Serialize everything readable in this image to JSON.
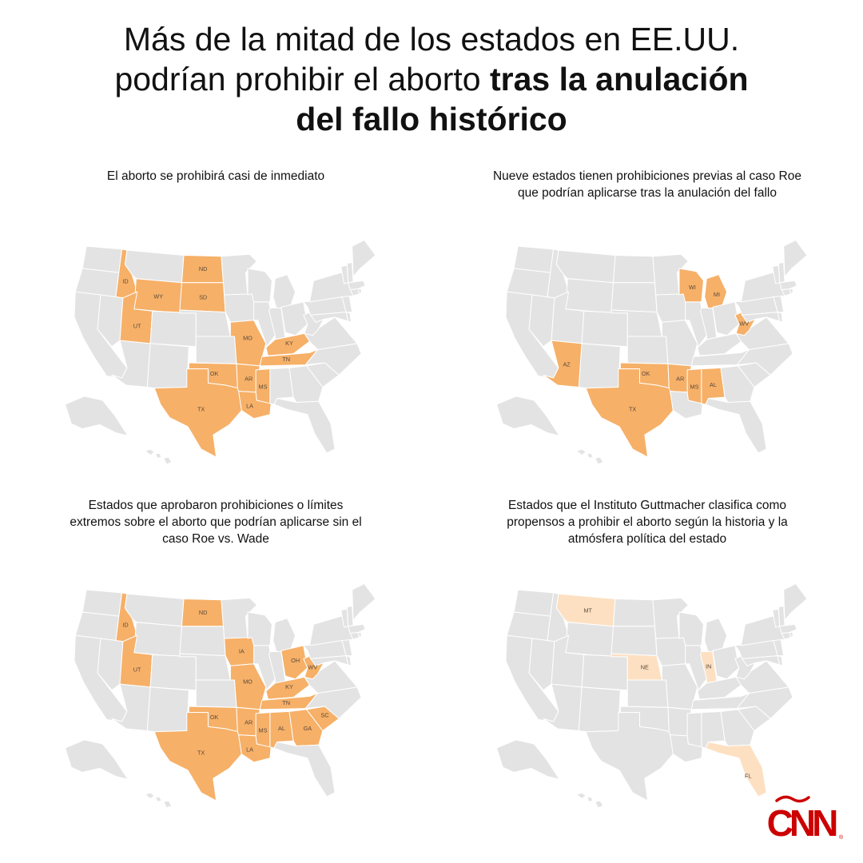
{
  "headline": {
    "line1": "Más de la mitad de los estados en EE.UU.",
    "line2_normal": "podrían prohibir el aborto ",
    "line2_bold": "tras la anulación",
    "line3_bold": "del fallo histórico"
  },
  "colors": {
    "land": "#e3e3e3",
    "border": "#ffffff",
    "highlight": "#f6b068",
    "highlight_light": "#fde0c2",
    "logo_red": "#cc0000"
  },
  "panels": [
    {
      "title_lines": [
        "El aborto se prohibirá casi de inmediato"
      ],
      "fill": "highlight",
      "states": [
        "ID",
        "WY",
        "ND",
        "SD",
        "UT",
        "MO",
        "KY",
        "TN",
        "OK",
        "AR",
        "TX",
        "LA",
        "MS"
      ]
    },
    {
      "title_lines": [
        "Nueve estados tienen prohibiciones previas al caso Roe",
        "que podrían aplicarse tras la anulación del fallo"
      ],
      "fill": "highlight",
      "states": [
        "WI",
        "MI",
        "WV",
        "AZ",
        "OK",
        "AR",
        "TX",
        "MS",
        "AL"
      ]
    },
    {
      "title_lines": [
        "Estados que aprobaron prohibiciones o límites",
        "extremos sobre el aborto que podrían aplicarse sin el",
        "caso Roe vs. Wade"
      ],
      "fill": "highlight",
      "states": [
        "ID",
        "ND",
        "UT",
        "IA",
        "MO",
        "OH",
        "WV",
        "KY",
        "TN",
        "OK",
        "AR",
        "TX",
        "LA",
        "MS",
        "AL",
        "GA",
        "SC"
      ]
    },
    {
      "title_lines": [
        "Estados que el Instituto Guttmacher clasifica como",
        "propensos a prohibir el aborto según la historia y la",
        "atmósfera política del estado"
      ],
      "fill": "highlight_light",
      "states": [
        "MT",
        "NE",
        "IN",
        "FL"
      ]
    }
  ],
  "logo": {
    "text": "CNN"
  }
}
